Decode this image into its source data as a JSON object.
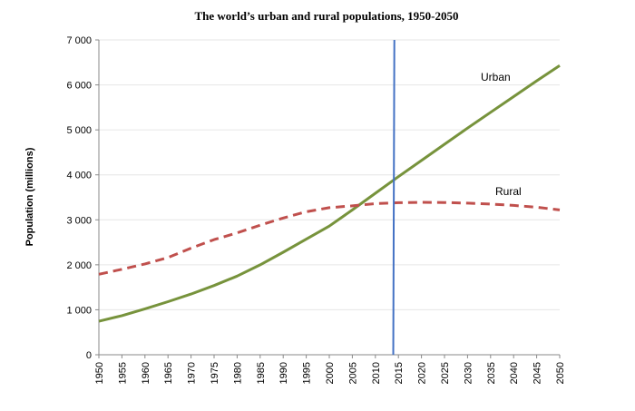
{
  "chart_data": {
    "type": "line",
    "title": "The world’s urban and rural populations, 1950-2050",
    "xlabel": "",
    "ylabel": "Population (millions)",
    "ylim": [
      0,
      7000
    ],
    "xlim": [
      1950,
      2050
    ],
    "y_ticks": [
      {
        "value": 0,
        "label": "0"
      },
      {
        "value": 1000,
        "label": "1 000"
      },
      {
        "value": 2000,
        "label": "2 000"
      },
      {
        "value": 3000,
        "label": "3 000"
      },
      {
        "value": 4000,
        "label": "4 000"
      },
      {
        "value": 5000,
        "label": "5 000"
      },
      {
        "value": 6000,
        "label": "6 000"
      },
      {
        "value": 7000,
        "label": "7 000"
      }
    ],
    "x": [
      1950,
      1955,
      1960,
      1965,
      1970,
      1975,
      1980,
      1985,
      1990,
      1995,
      2000,
      2005,
      2010,
      2015,
      2020,
      2025,
      2030,
      2035,
      2040,
      2045,
      2050
    ],
    "x_tick_labels": [
      "1950",
      "1955",
      "1960",
      "1965",
      "1970",
      "1975",
      "1980",
      "1985",
      "1990",
      "1995",
      "2000",
      "2005",
      "2010",
      "2015",
      "2020",
      "2025",
      "2030",
      "2035",
      "2040",
      "2045",
      "2050"
    ],
    "series": [
      {
        "name": "Urban",
        "color": "#77933c",
        "style": "solid",
        "values": [
          745,
          870,
          1020,
          1180,
          1350,
          1540,
          1750,
          2000,
          2280,
          2570,
          2860,
          3220,
          3590,
          3960,
          4320,
          4680,
          5040,
          5390,
          5740,
          6090,
          6430
        ]
      },
      {
        "name": "Rural",
        "color": "#c0504d",
        "style": "dashed",
        "values": [
          1790,
          1900,
          2020,
          2160,
          2370,
          2560,
          2710,
          2880,
          3040,
          3180,
          3270,
          3310,
          3360,
          3380,
          3390,
          3385,
          3370,
          3350,
          3320,
          3280,
          3220
        ]
      }
    ],
    "annotations": [
      {
        "type": "vertical_line",
        "x": 2014,
        "color": "#4472c4"
      }
    ],
    "grid": true,
    "legend": "inline labels"
  }
}
